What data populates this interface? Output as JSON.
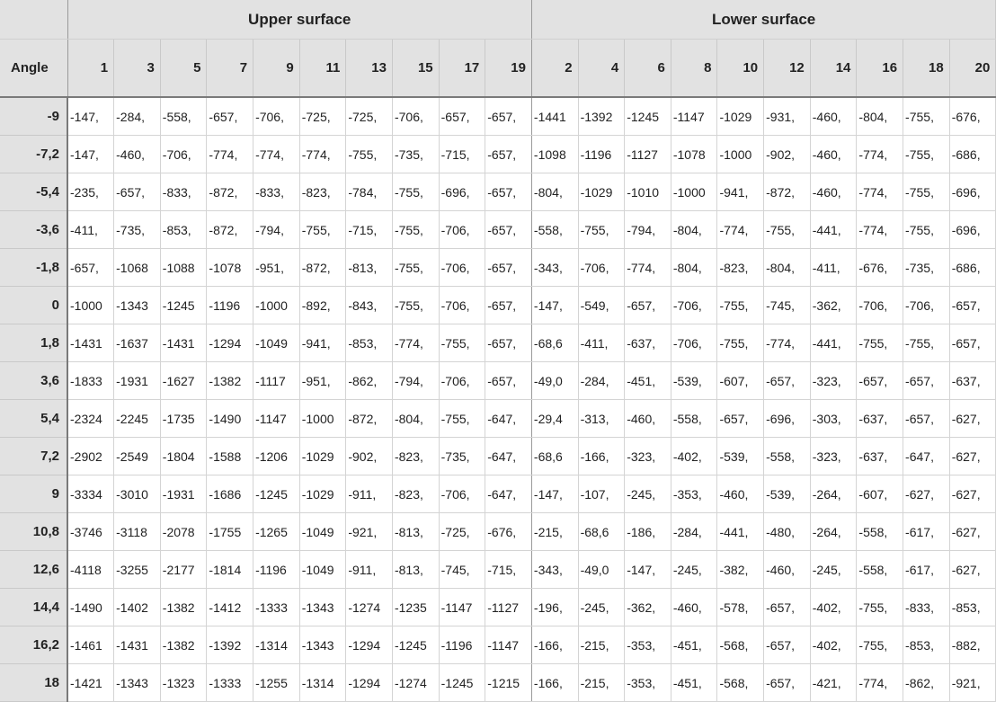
{
  "header": {
    "upper_label": "Upper surface",
    "lower_label": "Lower surface",
    "angle_label": "Angle",
    "upper_columns": [
      "1",
      "3",
      "5",
      "7",
      "9",
      "11",
      "13",
      "15",
      "17",
      "19"
    ],
    "lower_columns": [
      "2",
      "4",
      "6",
      "8",
      "10",
      "12",
      "14",
      "16",
      "18",
      "20"
    ]
  },
  "rows": [
    {
      "angle": "-9",
      "cells": [
        "-147,",
        "-284,",
        "-558,",
        "-657,",
        "-706,",
        "-725,",
        "-725,",
        "-706,",
        "-657,",
        "-657,",
        "-1441",
        "-1392",
        "-1245",
        "-1147",
        "-1029",
        "-931,",
        "-460,",
        "-804,",
        "-755,",
        "-676,"
      ]
    },
    {
      "angle": "-7,2",
      "cells": [
        "-147,",
        "-460,",
        "-706,",
        "-774,",
        "-774,",
        "-774,",
        "-755,",
        "-735,",
        "-715,",
        "-657,",
        "-1098",
        "-1196",
        "-1127",
        "-1078",
        "-1000",
        "-902,",
        "-460,",
        "-774,",
        "-755,",
        "-686,"
      ]
    },
    {
      "angle": "-5,4",
      "cells": [
        "-235,",
        "-657,",
        "-833,",
        "-872,",
        "-833,",
        "-823,",
        "-784,",
        "-755,",
        "-696,",
        "-657,",
        "-804,",
        "-1029",
        "-1010",
        "-1000",
        "-941,",
        "-872,",
        "-460,",
        "-774,",
        "-755,",
        "-696,"
      ]
    },
    {
      "angle": "-3,6",
      "cells": [
        "-411,",
        "-735,",
        "-853,",
        "-872,",
        "-794,",
        "-755,",
        "-715,",
        "-755,",
        "-706,",
        "-657,",
        "-558,",
        "-755,",
        "-794,",
        "-804,",
        "-774,",
        "-755,",
        "-441,",
        "-774,",
        "-755,",
        "-696,"
      ]
    },
    {
      "angle": "-1,8",
      "cells": [
        "-657,",
        "-1068",
        "-1088",
        "-1078",
        "-951,",
        "-872,",
        "-813,",
        "-755,",
        "-706,",
        "-657,",
        "-343,",
        "-706,",
        "-774,",
        "-804,",
        "-823,",
        "-804,",
        "-411,",
        "-676,",
        "-735,",
        "-686,"
      ]
    },
    {
      "angle": "0",
      "cells": [
        "-1000",
        "-1343",
        "-1245",
        "-1196",
        "-1000",
        "-892,",
        "-843,",
        "-755,",
        "-706,",
        "-657,",
        "-147,",
        "-549,",
        "-657,",
        "-706,",
        "-755,",
        "-745,",
        "-362,",
        "-706,",
        "-706,",
        "-657,"
      ]
    },
    {
      "angle": "1,8",
      "cells": [
        "-1431",
        "-1637",
        "-1431",
        "-1294",
        "-1049",
        "-941,",
        "-853,",
        "-774,",
        "-755,",
        "-657,",
        "-68,6",
        "-411,",
        "-637,",
        "-706,",
        "-755,",
        "-774,",
        "-441,",
        "-755,",
        "-755,",
        "-657,"
      ]
    },
    {
      "angle": "3,6",
      "cells": [
        "-1833",
        "-1931",
        "-1627",
        "-1382",
        "-1117",
        "-951,",
        "-862,",
        "-794,",
        "-706,",
        "-657,",
        "-49,0",
        "-284,",
        "-451,",
        "-539,",
        "-607,",
        "-657,",
        "-323,",
        "-657,",
        "-657,",
        "-637,"
      ]
    },
    {
      "angle": "5,4",
      "cells": [
        "-2324",
        "-2245",
        "-1735",
        "-1490",
        "-1147",
        "-1000",
        "-872,",
        "-804,",
        "-755,",
        "-647,",
        "-29,4",
        "-313,",
        "-460,",
        "-558,",
        "-657,",
        "-696,",
        "-303,",
        "-637,",
        "-657,",
        "-627,"
      ]
    },
    {
      "angle": "7,2",
      "cells": [
        "-2902",
        "-2549",
        "-1804",
        "-1588",
        "-1206",
        "-1029",
        "-902,",
        "-823,",
        "-735,",
        "-647,",
        "-68,6",
        "-166,",
        "-323,",
        "-402,",
        "-539,",
        "-558,",
        "-323,",
        "-637,",
        "-647,",
        "-627,"
      ]
    },
    {
      "angle": "9",
      "cells": [
        "-3334",
        "-3010",
        "-1931",
        "-1686",
        "-1245",
        "-1029",
        "-911,",
        "-823,",
        "-706,",
        "-647,",
        "-147,",
        "-107,",
        "-245,",
        "-353,",
        "-460,",
        "-539,",
        "-264,",
        "-607,",
        "-627,",
        "-627,"
      ]
    },
    {
      "angle": "10,8",
      "cells": [
        "-3746",
        "-3118",
        "-2078",
        "-1755",
        "-1265",
        "-1049",
        "-921,",
        "-813,",
        "-725,",
        "-676,",
        "-215,",
        "-68,6",
        "-186,",
        "-284,",
        "-441,",
        "-480,",
        "-264,",
        "-558,",
        "-617,",
        "-627,"
      ]
    },
    {
      "angle": "12,6",
      "cells": [
        "-4118",
        "-3255",
        "-2177",
        "-1814",
        "-1196",
        "-1049",
        "-911,",
        "-813,",
        "-745,",
        "-715,",
        "-343,",
        "-49,0",
        "-147,",
        "-245,",
        "-382,",
        "-460,",
        "-245,",
        "-558,",
        "-617,",
        "-627,"
      ]
    },
    {
      "angle": "14,4",
      "cells": [
        "-1490",
        "-1402",
        "-1382",
        "-1412",
        "-1333",
        "-1343",
        "-1274",
        "-1235",
        "-1147",
        "-1127",
        "-196,",
        "-245,",
        "-362,",
        "-460,",
        "-578,",
        "-657,",
        "-402,",
        "-755,",
        "-833,",
        "-853,"
      ]
    },
    {
      "angle": "16,2",
      "cells": [
        "-1461",
        "-1431",
        "-1382",
        "-1392",
        "-1314",
        "-1343",
        "-1294",
        "-1245",
        "-1196",
        "-1147",
        "-166,",
        "-215,",
        "-353,",
        "-451,",
        "-568,",
        "-657,",
        "-402,",
        "-755,",
        "-853,",
        "-882,"
      ]
    },
    {
      "angle": "18",
      "cells": [
        "-1421",
        "-1343",
        "-1323",
        "-1333",
        "-1255",
        "-1314",
        "-1294",
        "-1274",
        "-1245",
        "-1215",
        "-166,",
        "-215,",
        "-353,",
        "-451,",
        "-568,",
        "-657,",
        "-421,",
        "-774,",
        "-862,",
        "-921,"
      ]
    }
  ]
}
